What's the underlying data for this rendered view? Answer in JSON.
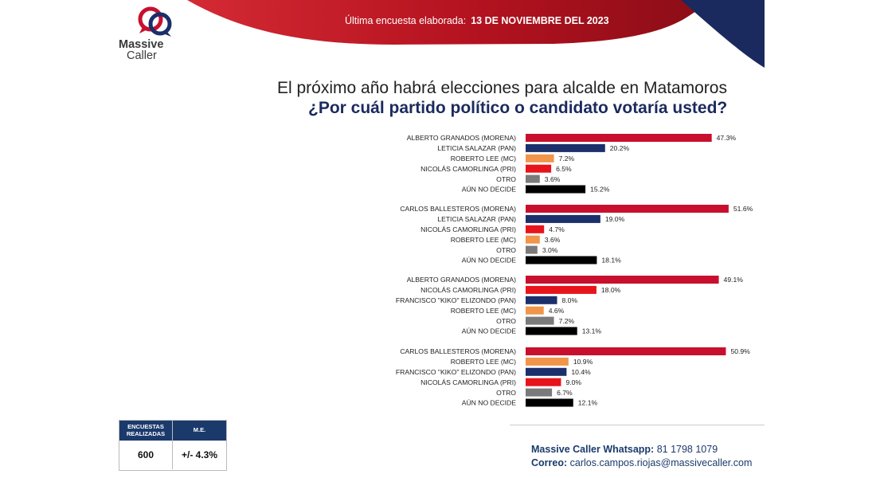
{
  "header": {
    "label": "Última encuesta elaborada:",
    "date": "13 DE NOVIEMBRE  DEL 2023"
  },
  "logo": {
    "line1": "Massive",
    "line2": "Caller"
  },
  "question": {
    "title": "El próximo año habrá elecciones para alcalde en Matamoros",
    "subtitle": "¿Por cuál partido político o candidato votaría usted?"
  },
  "colors": {
    "morena": "#c8102e",
    "pan": "#1b2f6b",
    "mc": "#f0954a",
    "pri": "#e8141c",
    "otro": "#7a7a7a",
    "no_decide": "#000000"
  },
  "chart_data": {
    "type": "bar",
    "orientation": "horizontal",
    "xlim": [
      0,
      60
    ],
    "groups": [
      {
        "bars": [
          {
            "label": "ALBERTO GRANADOS (MORENA)",
            "value": 47.3,
            "value_label": "47.3%",
            "party": "morena"
          },
          {
            "label": "LETICIA SALAZAR (PAN)",
            "value": 20.2,
            "value_label": "20.2%",
            "party": "pan"
          },
          {
            "label": "ROBERTO LEE (MC)",
            "value": 7.2,
            "value_label": "7.2%",
            "party": "mc"
          },
          {
            "label": "NICOLÁS CAMORLINGA (PRI)",
            "value": 6.5,
            "value_label": "6.5%",
            "party": "pri"
          },
          {
            "label": "OTRO",
            "value": 3.6,
            "value_label": "3.6%",
            "party": "otro"
          },
          {
            "label": "AÚN NO DECIDE",
            "value": 15.2,
            "value_label": "15.2%",
            "party": "no_decide"
          }
        ]
      },
      {
        "bars": [
          {
            "label": "CARLOS BALLESTEROS (MORENA)",
            "value": 51.6,
            "value_label": "51.6%",
            "party": "morena"
          },
          {
            "label": "LETICIA SALAZAR (PAN)",
            "value": 19.0,
            "value_label": "19.0%",
            "party": "pan"
          },
          {
            "label": "NICOLÁS CAMORLINGA (PRI)",
            "value": 4.7,
            "value_label": "4.7%",
            "party": "pri"
          },
          {
            "label": "ROBERTO LEE (MC)",
            "value": 3.6,
            "value_label": "3.6%",
            "party": "mc"
          },
          {
            "label": "OTRO",
            "value": 3.0,
            "value_label": "3.0%",
            "party": "otro"
          },
          {
            "label": "AÚN NO DECIDE",
            "value": 18.1,
            "value_label": "18.1%",
            "party": "no_decide"
          }
        ]
      },
      {
        "bars": [
          {
            "label": "ALBERTO GRANADOS (MORENA)",
            "value": 49.1,
            "value_label": "49.1%",
            "party": "morena"
          },
          {
            "label": "NICOLÁS CAMORLINGA (PRI)",
            "value": 18.0,
            "value_label": "18.0%",
            "party": "pri"
          },
          {
            "label": "FRANCISCO \"KIKO\" ELIZONDO (PAN)",
            "value": 8.0,
            "value_label": "8.0%",
            "party": "pan"
          },
          {
            "label": "ROBERTO LEE (MC)",
            "value": 4.6,
            "value_label": "4.6%",
            "party": "mc"
          },
          {
            "label": "OTRO",
            "value": 7.2,
            "value_label": "7.2%",
            "party": "otro"
          },
          {
            "label": "AÚN NO DECIDE",
            "value": 13.1,
            "value_label": "13.1%",
            "party": "no_decide"
          }
        ]
      },
      {
        "bars": [
          {
            "label": "CARLOS BALLESTEROS (MORENA)",
            "value": 50.9,
            "value_label": "50.9%",
            "party": "morena"
          },
          {
            "label": "ROBERTO LEE (MC)",
            "value": 10.9,
            "value_label": "10.9%",
            "party": "mc"
          },
          {
            "label": "FRANCISCO \"KIKO\" ELIZONDO (PAN)",
            "value": 10.4,
            "value_label": "10.4%",
            "party": "pan"
          },
          {
            "label": "NICOLÁS CAMORLINGA (PRI)",
            "value": 9.0,
            "value_label": "9.0%",
            "party": "pri"
          },
          {
            "label": "OTRO",
            "value": 6.7,
            "value_label": "6.7%",
            "party": "otro"
          },
          {
            "label": "AÚN NO DECIDE",
            "value": 12.1,
            "value_label": "12.1%",
            "party": "no_decide"
          }
        ]
      }
    ]
  },
  "stats": {
    "col1_header_line1": "ENCUESTAS",
    "col1_header_line2": "REALIZADAS",
    "col2_header": "M.E.",
    "col1_value": "600",
    "col2_value": "+/- 4.3%"
  },
  "contact": {
    "whatsapp_label": "Massive Caller Whatsapp:",
    "whatsapp_number": "81 1798 1079",
    "email_label": "Correo:",
    "email": "carlos.campos.riojas@massivecaller.com"
  }
}
